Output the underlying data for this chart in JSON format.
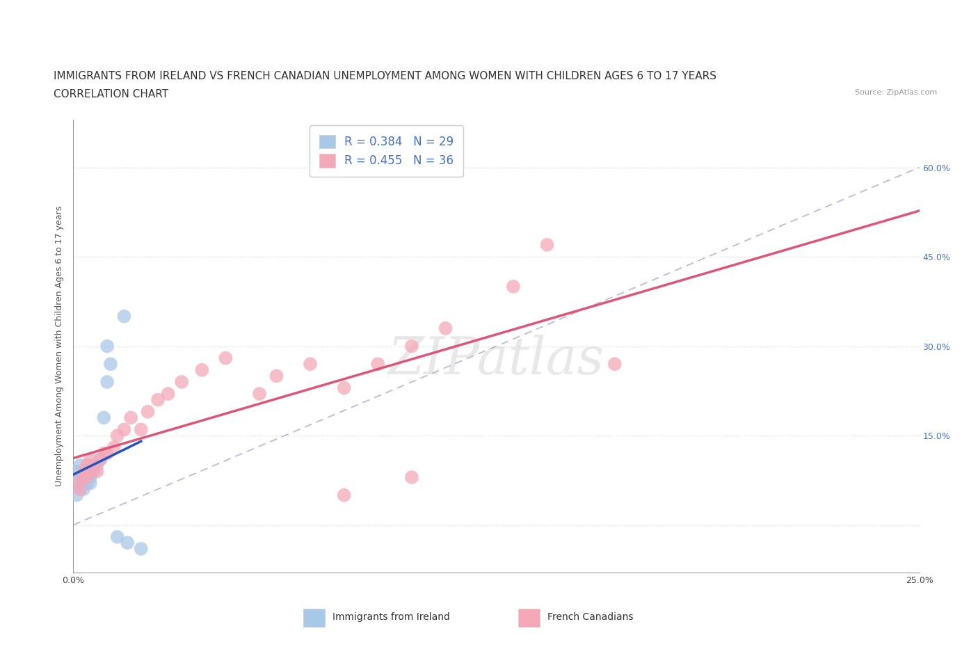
{
  "title_line1": "IMMIGRANTS FROM IRELAND VS FRENCH CANADIAN UNEMPLOYMENT AMONG WOMEN WITH CHILDREN AGES 6 TO 17 YEARS",
  "title_line2": "CORRELATION CHART",
  "source_text": "Source: ZipAtlas.com",
  "ylabel": "Unemployment Among Women with Children Ages 6 to 17 years",
  "xlim": [
    0.0,
    0.25
  ],
  "ylim": [
    -0.08,
    0.68
  ],
  "xtick_positions": [
    0.0,
    0.05,
    0.1,
    0.15,
    0.2,
    0.25
  ],
  "xticklabels": [
    "0.0%",
    "",
    "",
    "",
    "",
    "25.0%"
  ],
  "ytick_positions": [
    0.0,
    0.15,
    0.3,
    0.45,
    0.6
  ],
  "ytick_labels": [
    "",
    "15.0%",
    "30.0%",
    "45.0%",
    "60.0%"
  ],
  "ireland_color": "#a8c8e8",
  "french_color": "#f4a8b8",
  "ireland_line_color": "#2255bb",
  "french_line_color": "#dd5577",
  "diag_line_color": "#aaaacc",
  "R_ireland": 0.384,
  "N_ireland": 29,
  "R_french": 0.455,
  "N_french": 36,
  "legend_label_ireland": "Immigrants from Ireland",
  "legend_label_french": "French Canadians",
  "background_color": "#ffffff",
  "grid_color": "#dddddd",
  "title_fontsize": 11,
  "subtitle_fontsize": 11,
  "axis_label_fontsize": 9,
  "tick_fontsize": 9,
  "legend_fontsize": 12,
  "source_fontsize": 8,
  "ireland_x": [
    0.0,
    0.001,
    0.001,
    0.001,
    0.002,
    0.002,
    0.002,
    0.002,
    0.003,
    0.003,
    0.003,
    0.003,
    0.004,
    0.004,
    0.004,
    0.005,
    0.005,
    0.005,
    0.006,
    0.007,
    0.008,
    0.009,
    0.01,
    0.011,
    0.013,
    0.016,
    0.02,
    0.01,
    0.015
  ],
  "ireland_y": [
    0.08,
    0.05,
    0.07,
    0.09,
    0.06,
    0.07,
    0.08,
    0.1,
    0.06,
    0.07,
    0.08,
    0.09,
    0.07,
    0.08,
    0.09,
    0.07,
    0.08,
    0.1,
    0.09,
    0.1,
    0.11,
    0.18,
    0.24,
    0.27,
    -0.02,
    -0.03,
    -0.04,
    0.3,
    0.35
  ],
  "french_x": [
    0.001,
    0.002,
    0.003,
    0.003,
    0.004,
    0.004,
    0.005,
    0.005,
    0.006,
    0.007,
    0.008,
    0.009,
    0.01,
    0.012,
    0.013,
    0.015,
    0.017,
    0.02,
    0.022,
    0.025,
    0.028,
    0.032,
    0.038,
    0.045,
    0.055,
    0.06,
    0.07,
    0.08,
    0.09,
    0.1,
    0.11,
    0.13,
    0.14,
    0.16,
    0.1,
    0.08
  ],
  "french_y": [
    0.07,
    0.06,
    0.08,
    0.09,
    0.08,
    0.1,
    0.09,
    0.11,
    0.1,
    0.09,
    0.11,
    0.12,
    0.12,
    0.13,
    0.15,
    0.16,
    0.18,
    0.16,
    0.19,
    0.21,
    0.22,
    0.24,
    0.26,
    0.28,
    0.22,
    0.25,
    0.27,
    0.23,
    0.27,
    0.3,
    0.33,
    0.4,
    0.47,
    0.27,
    0.08,
    0.05
  ]
}
